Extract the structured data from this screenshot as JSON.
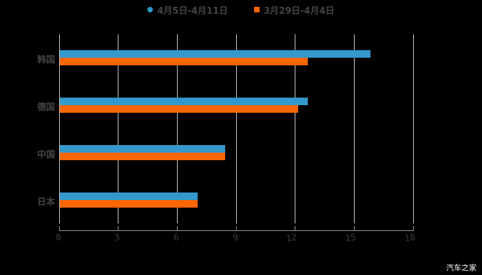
{
  "chart_data": {
    "type": "bar",
    "orientation": "horizontal",
    "title": "",
    "categories": [
      "韩国",
      "德国",
      "中国",
      "日本"
    ],
    "series": [
      {
        "name": "4月5日-4月11日",
        "color": "#3399cc",
        "values": [
          15.8,
          12.6,
          8.4,
          7.0
        ]
      },
      {
        "name": "3月29日-4月4日",
        "color": "#ff6600",
        "values": [
          12.6,
          12.1,
          8.4,
          7.0
        ]
      }
    ],
    "xlabel": "",
    "ylabel": "",
    "xlim": [
      0,
      18
    ],
    "xticks": [
      "0",
      "3",
      "6",
      "9",
      "12",
      "15",
      "18"
    ],
    "grid": true,
    "legend_position": "top"
  },
  "legend": {
    "s1": "4月5日-4月11日",
    "s2": "3月29日-4月4日"
  },
  "categories": [
    "韩国",
    "德国",
    "中国",
    "日本"
  ],
  "ticks": [
    "0",
    "3",
    "6",
    "9",
    "12",
    "15",
    "18"
  ],
  "watermark": "汽车之家"
}
